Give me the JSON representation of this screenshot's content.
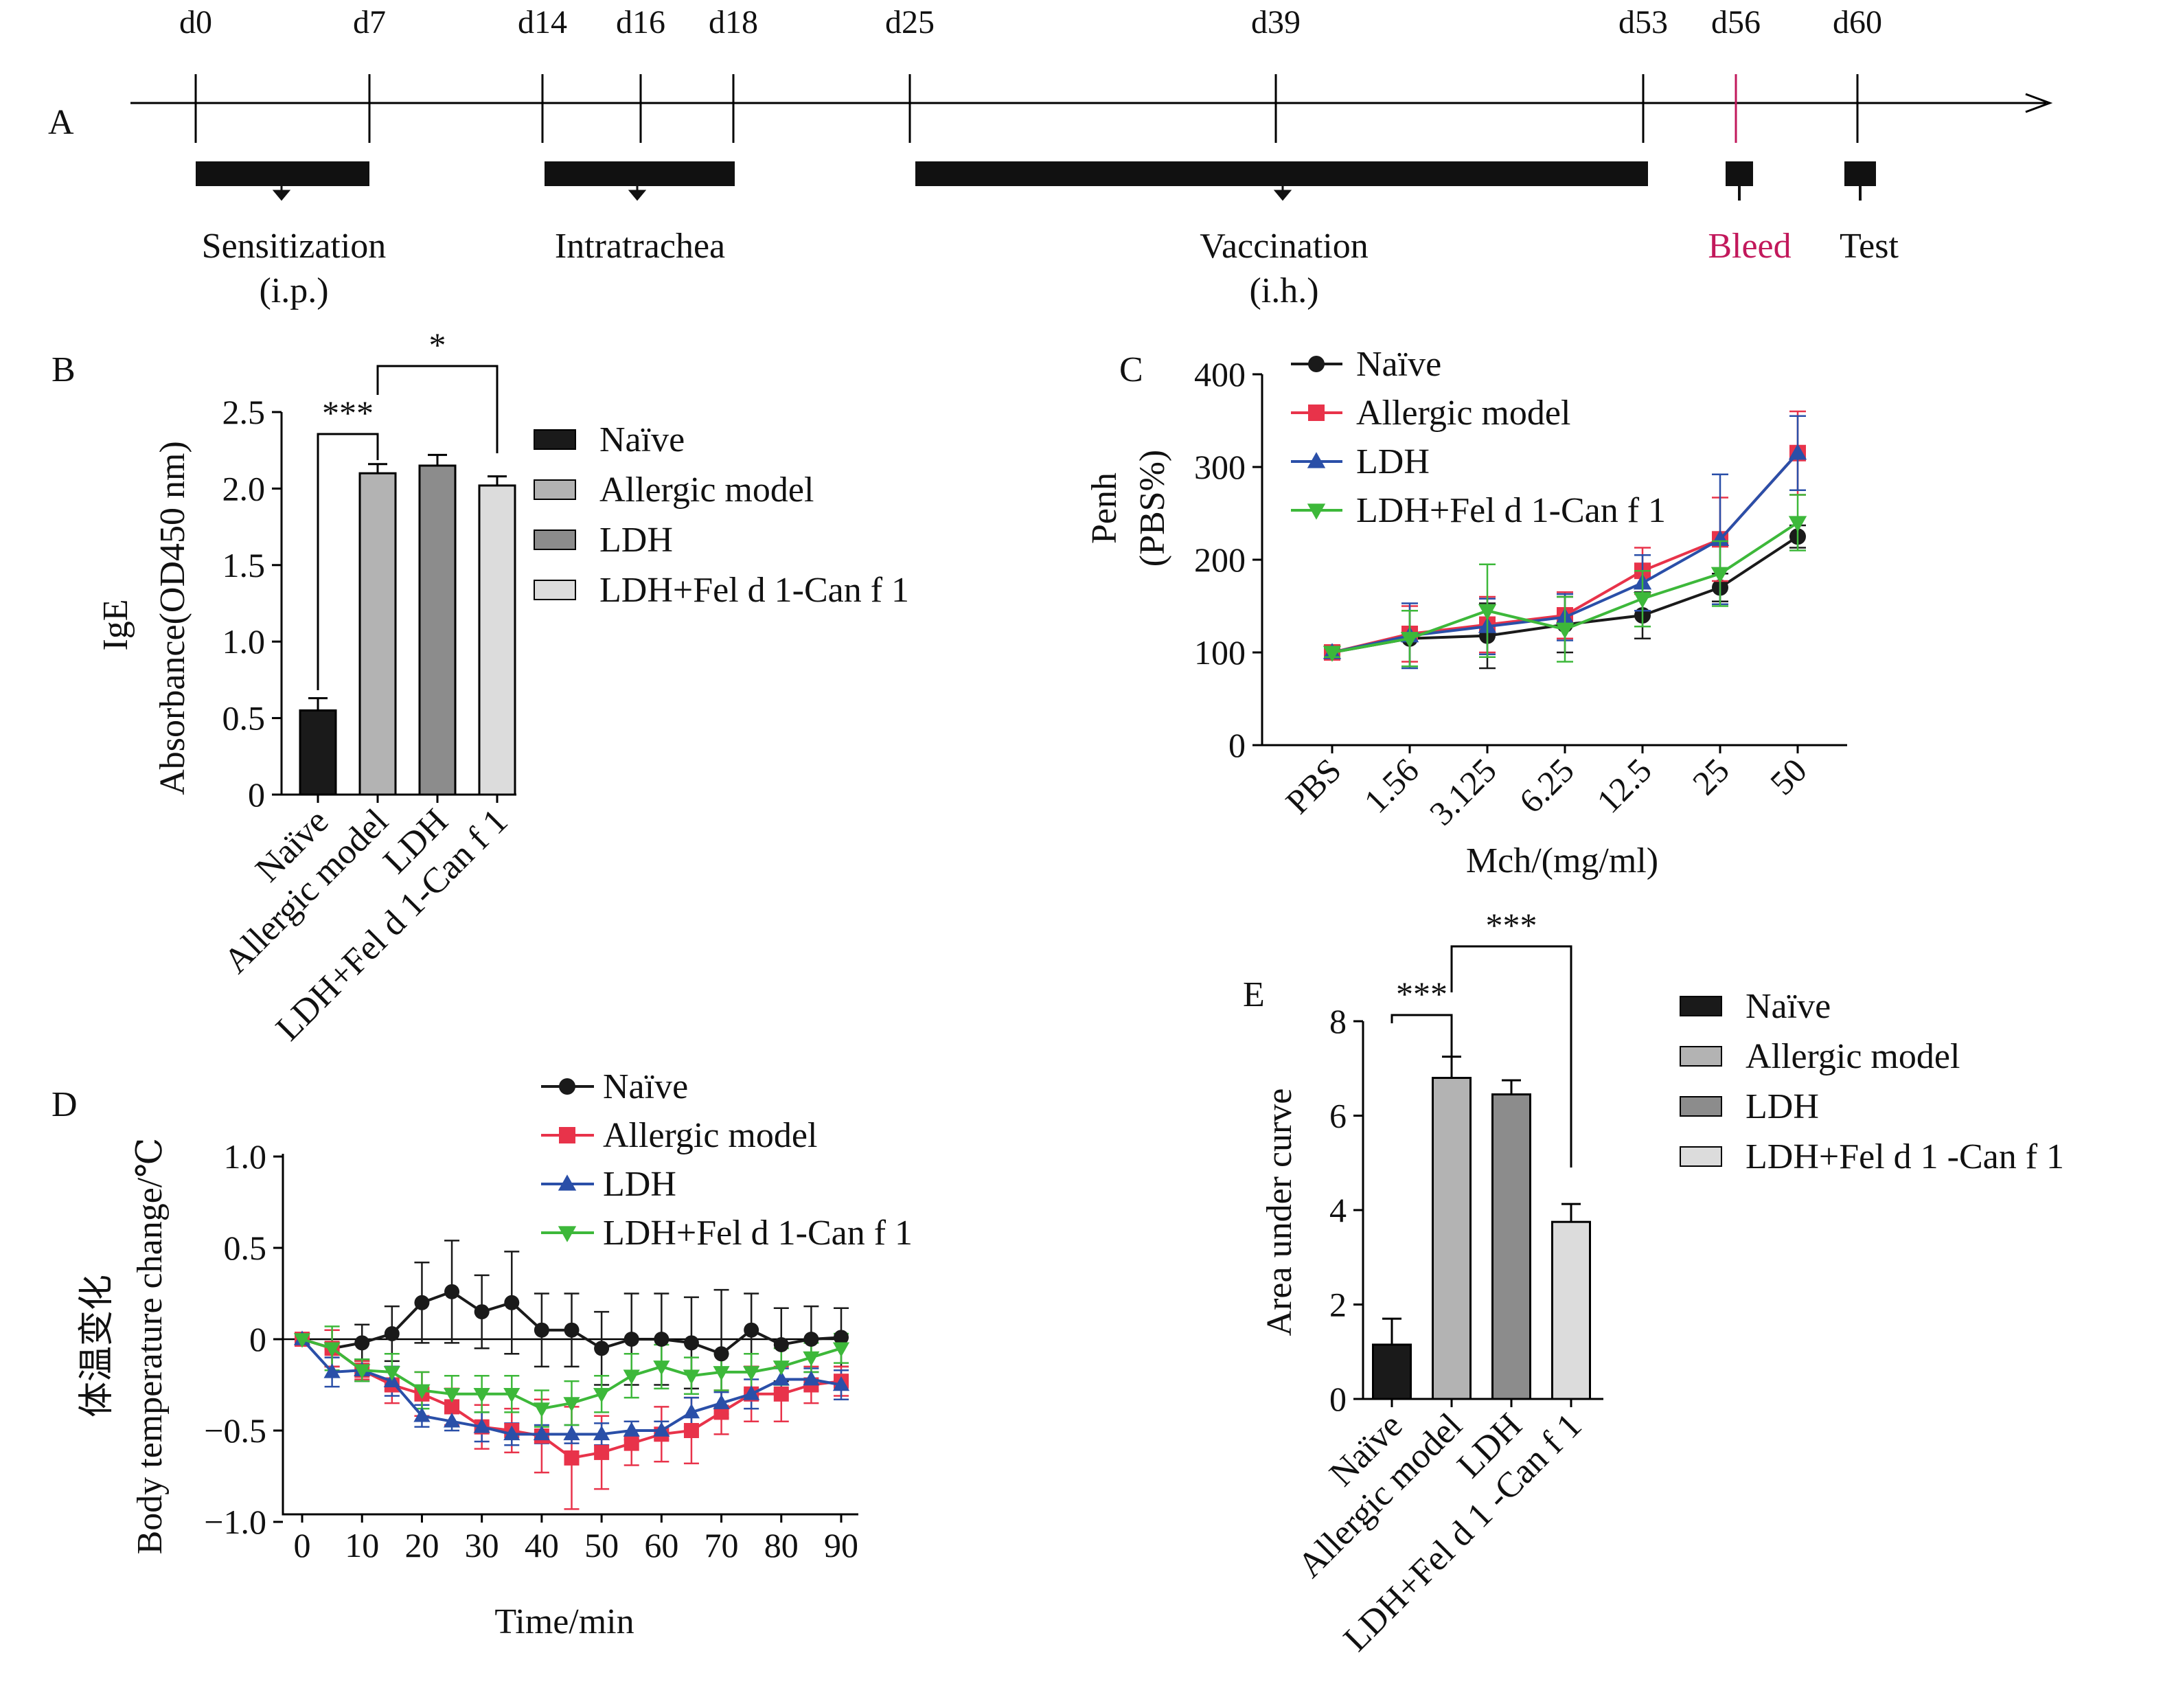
{
  "colors": {
    "naive": "#1a1a1a",
    "allergic": "#e8334a",
    "ldh": "#2a4fa8",
    "ldh_fel": "#3db83a",
    "bar_naive": "#1a1a1a",
    "bar_allergic": "#b3b3b3",
    "bar_ldh": "#8c8c8c",
    "bar_ldh_fel": "#dcdcdc",
    "bleed": "#c2185b"
  },
  "panels": {
    "A": "A",
    "B": "B",
    "C": "C",
    "D": "D",
    "E": "E"
  },
  "timeline": {
    "days": [
      "d0",
      "d7",
      "d14",
      "d16",
      "d18",
      "d25",
      "d39",
      "d53",
      "d56",
      "d60"
    ],
    "labels": {
      "sensitization": "Sensitization",
      "sensitization_route": "(i.p.)",
      "intratrachea": "Intratrachea",
      "vaccination": "Vaccination",
      "vaccination_route": "(i.h.)",
      "bleed": "Bleed",
      "test": "Test"
    }
  },
  "chart_data": [
    {
      "id": "B",
      "type": "bar",
      "ylabel_line1": "IgE",
      "ylabel_line2": "Absorbance(OD450 nm)",
      "ylim": [
        0,
        2.5
      ],
      "yticks": [
        "0",
        "0.5",
        "1.0",
        "1.5",
        "2.0",
        "2.5"
      ],
      "categories": [
        "Naïve",
        "Allergic model",
        "LDH",
        "LDH+Fel d 1-Can f 1"
      ],
      "values": [
        0.55,
        2.1,
        2.15,
        2.02
      ],
      "errors": [
        0.08,
        0.06,
        0.07,
        0.06
      ],
      "legend": [
        "Naïve",
        "Allergic model",
        "LDH",
        "LDH+Fel d 1-Can f 1"
      ],
      "significance": [
        "***",
        "*"
      ]
    },
    {
      "id": "C",
      "type": "line",
      "ylabel_line1": "Penh",
      "ylabel_line2": "(PBS%)",
      "xlabel": "Mch/(mg/ml)",
      "categories": [
        "PBS",
        "1.56",
        "3.125",
        "6.25",
        "12.5",
        "25",
        "50"
      ],
      "ylim": [
        0,
        400
      ],
      "yticks": [
        "0",
        "100",
        "200",
        "300",
        "400"
      ],
      "series": [
        {
          "name": "Naïve",
          "values": [
            100,
            115,
            118,
            130,
            140,
            170,
            225
          ],
          "errors": [
            5,
            30,
            35,
            30,
            25,
            15,
            12
          ]
        },
        {
          "name": "Allergic model",
          "values": [
            100,
            120,
            130,
            140,
            188,
            222,
            315
          ],
          "errors": [
            5,
            30,
            30,
            25,
            25,
            45,
            45
          ]
        },
        {
          "name": "LDH",
          "values": [
            100,
            118,
            128,
            138,
            175,
            222,
            315
          ],
          "errors": [
            5,
            35,
            30,
            25,
            30,
            70,
            40
          ]
        },
        {
          "name": "LDH+Fel d 1-Can f 1",
          "values": [
            100,
            115,
            145,
            125,
            158,
            185,
            240
          ],
          "errors": [
            5,
            30,
            50,
            35,
            30,
            35,
            30
          ]
        }
      ]
    },
    {
      "id": "D",
      "type": "line",
      "ylabel_line1": "体温变化",
      "ylabel_line2": "Body temperature change/℃",
      "xlabel": "Time/min",
      "xlim": [
        0,
        90
      ],
      "ylim": [
        -1.0,
        1.0
      ],
      "xticks": [
        "0",
        "10",
        "20",
        "30",
        "40",
        "50",
        "60",
        "70",
        "80",
        "90"
      ],
      "yticks": [
        "−1.0",
        "−0.5",
        "0",
        "0.5",
        "1.0"
      ],
      "x": [
        0,
        5,
        10,
        15,
        20,
        25,
        30,
        35,
        40,
        45,
        50,
        55,
        60,
        65,
        70,
        75,
        80,
        85,
        90
      ],
      "series": [
        {
          "name": "Naïve",
          "values": [
            0,
            -0.05,
            -0.02,
            0.03,
            0.2,
            0.26,
            0.15,
            0.2,
            0.05,
            0.05,
            -0.05,
            0.0,
            0.0,
            -0.02,
            -0.08,
            0.05,
            -0.03,
            0.0,
            0.01
          ],
          "errors": [
            0.02,
            0.1,
            0.1,
            0.15,
            0.22,
            0.28,
            0.2,
            0.28,
            0.2,
            0.2,
            0.2,
            0.25,
            0.25,
            0.25,
            0.35,
            0.2,
            0.2,
            0.18,
            0.16
          ]
        },
        {
          "name": "Allergic model",
          "values": [
            0,
            -0.05,
            -0.17,
            -0.25,
            -0.3,
            -0.37,
            -0.48,
            -0.5,
            -0.53,
            -0.65,
            -0.62,
            -0.57,
            -0.52,
            -0.5,
            -0.4,
            -0.3,
            -0.3,
            -0.25,
            -0.23
          ],
          "errors": [
            0.02,
            0.1,
            0.05,
            0.1,
            0.12,
            0.1,
            0.12,
            0.12,
            0.2,
            0.28,
            0.2,
            0.12,
            0.15,
            0.18,
            0.12,
            0.15,
            0.15,
            0.1,
            0.08
          ]
        },
        {
          "name": "LDH",
          "values": [
            0,
            -0.18,
            -0.17,
            -0.23,
            -0.42,
            -0.45,
            -0.48,
            -0.52,
            -0.52,
            -0.52,
            -0.52,
            -0.5,
            -0.5,
            -0.4,
            -0.35,
            -0.3,
            -0.22,
            -0.22,
            -0.25
          ],
          "errors": [
            0.02,
            0.08,
            0.06,
            0.08,
            0.06,
            0.05,
            0.08,
            0.06,
            0.05,
            0.05,
            0.06,
            0.05,
            0.05,
            0.08,
            0.06,
            0.08,
            0.06,
            0.06,
            0.08
          ]
        },
        {
          "name": "LDH+Fel d 1-Can f 1",
          "values": [
            0,
            -0.05,
            -0.17,
            -0.18,
            -0.28,
            -0.3,
            -0.3,
            -0.3,
            -0.38,
            -0.35,
            -0.3,
            -0.2,
            -0.15,
            -0.2,
            -0.18,
            -0.18,
            -0.15,
            -0.1,
            -0.05
          ],
          "errors": [
            0.02,
            0.12,
            0.06,
            0.1,
            0.1,
            0.1,
            0.1,
            0.1,
            0.1,
            0.12,
            0.1,
            0.12,
            0.12,
            0.1,
            0.1,
            0.1,
            0.1,
            0.08,
            0.08
          ]
        }
      ]
    },
    {
      "id": "E",
      "type": "bar",
      "ylabel": "Area under curve",
      "ylim": [
        0,
        8
      ],
      "yticks": [
        "0",
        "2",
        "4",
        "6",
        "8"
      ],
      "categories": [
        "Naïve",
        "Allergic model",
        "LDH",
        "LDH+Fel d 1 -Can f 1"
      ],
      "values": [
        1.15,
        6.8,
        6.45,
        3.75
      ],
      "errors": [
        0.55,
        0.45,
        0.3,
        0.38
      ],
      "legend": [
        "Naïve",
        "Allergic model",
        "LDH",
        "LDH+Fel d 1 -Can f 1"
      ],
      "significance": [
        "***",
        "***"
      ]
    }
  ]
}
